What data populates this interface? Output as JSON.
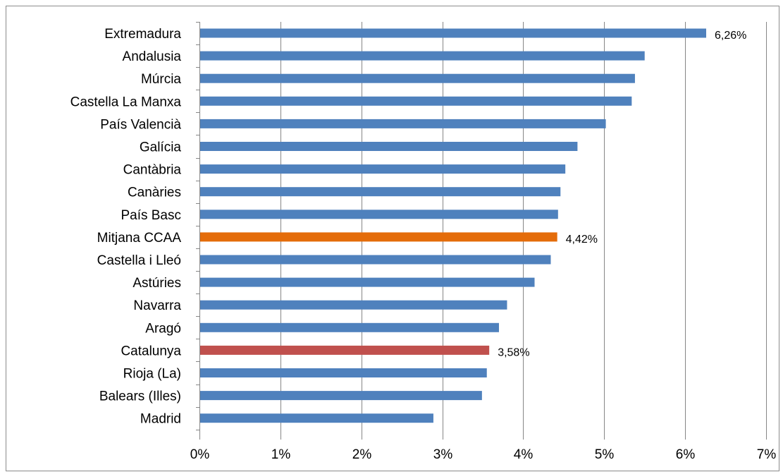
{
  "chart_data": {
    "type": "bar",
    "orientation": "horizontal",
    "categories": [
      "Extremadura",
      "Andalusia",
      "Múrcia",
      "Castella La Manxa",
      "País Valencià",
      "Galícia",
      "Cantàbria",
      "Canàries",
      "País Basc",
      "Mitjana CCAA",
      "Castella i Lleó",
      "Astúries",
      "Navarra",
      "Aragó",
      "Catalunya",
      "Rioja (La)",
      "Balears (Illes)",
      "Madrid"
    ],
    "values": [
      6.26,
      5.5,
      5.38,
      5.34,
      5.02,
      4.67,
      4.52,
      4.46,
      4.43,
      4.42,
      4.34,
      4.14,
      3.8,
      3.7,
      3.58,
      3.55,
      3.49,
      2.89
    ],
    "bar_colors": [
      "#4f81bd",
      "#4f81bd",
      "#4f81bd",
      "#4f81bd",
      "#4f81bd",
      "#4f81bd",
      "#4f81bd",
      "#4f81bd",
      "#4f81bd",
      "#e46c0a",
      "#4f81bd",
      "#4f81bd",
      "#4f81bd",
      "#4f81bd",
      "#c0504d",
      "#4f81bd",
      "#4f81bd",
      "#4f81bd"
    ],
    "data_labels": [
      {
        "category": "Extremadura",
        "text": "6,26%"
      },
      {
        "category": "Mitjana CCAA",
        "text": "4,42%"
      },
      {
        "category": "Catalunya",
        "text": "3,58%"
      }
    ],
    "xlim": [
      0,
      7
    ],
    "xticks": [
      0,
      1,
      2,
      3,
      4,
      5,
      6,
      7
    ],
    "xtick_labels": [
      "0%",
      "1%",
      "2%",
      "3%",
      "4%",
      "5%",
      "6%",
      "7%"
    ],
    "grid": "vertical",
    "gridline_color": "#868686",
    "legend": "none",
    "title": "",
    "xlabel": "",
    "ylabel": ""
  }
}
